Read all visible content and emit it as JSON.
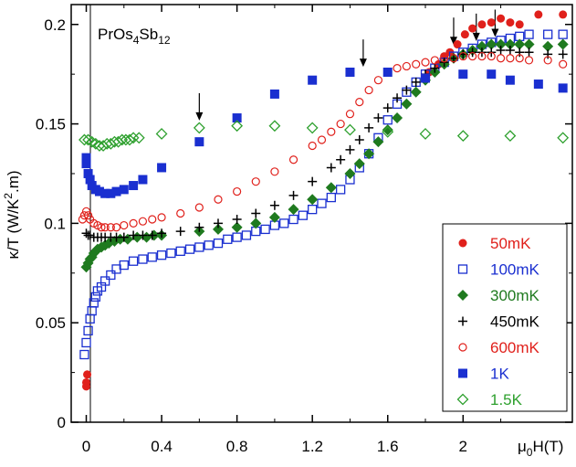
{
  "chart_data": {
    "type": "scatter",
    "title": "",
    "annotation": {
      "text": "PrOs",
      "sub1": "4",
      "mid": "Sb",
      "sub2": "12"
    },
    "xlabel": {
      "mu": "μ",
      "sub": "0",
      "rest": "H(T)"
    },
    "ylabel": {
      "pre": "κ/T (W/K",
      "sup": "2",
      "post": ".m)"
    },
    "xlim": [
      -0.08,
      2.58
    ],
    "ylim": [
      0,
      0.21
    ],
    "xticks": [
      0,
      0.4,
      0.8,
      1.2,
      1.6,
      2
    ],
    "xtick_labels": [
      "0",
      "0.4",
      "0.8",
      "1.2",
      "1.6",
      "2"
    ],
    "yticks": [
      0,
      0.05,
      0.1,
      0.15,
      0.2
    ],
    "ytick_labels": [
      "0",
      "0.05",
      "0.1",
      "0.15",
      "0.2"
    ],
    "legend_position": "bottom-right",
    "series": [
      {
        "name": "50mK",
        "marker": "circle-filled",
        "color": "#e0201b",
        "points": [
          [
            0.0,
            0.018
          ],
          [
            0.0,
            0.02
          ],
          [
            0.005,
            0.024
          ],
          [
            1.82,
            0.176
          ],
          [
            1.87,
            0.18
          ],
          [
            1.9,
            0.184
          ],
          [
            1.93,
            0.186
          ],
          [
            1.97,
            0.19
          ],
          [
            2.01,
            0.195
          ],
          [
            2.05,
            0.198
          ],
          [
            2.1,
            0.2
          ],
          [
            2.15,
            0.201
          ],
          [
            2.2,
            0.203
          ],
          [
            2.25,
            0.201
          ],
          [
            2.3,
            0.2
          ],
          [
            2.4,
            0.205
          ],
          [
            2.53,
            0.205
          ]
        ]
      },
      {
        "name": "100mK",
        "marker": "square-open",
        "color": "#1a2fd0",
        "points": [
          [
            -0.01,
            0.034
          ],
          [
            0.0,
            0.04
          ],
          [
            0.01,
            0.046
          ],
          [
            0.02,
            0.052
          ],
          [
            0.03,
            0.056
          ],
          [
            0.04,
            0.06
          ],
          [
            0.05,
            0.063
          ],
          [
            0.06,
            0.066
          ],
          [
            0.08,
            0.068
          ],
          [
            0.1,
            0.071
          ],
          [
            0.13,
            0.074
          ],
          [
            0.16,
            0.077
          ],
          [
            0.2,
            0.079
          ],
          [
            0.25,
            0.081
          ],
          [
            0.3,
            0.082
          ],
          [
            0.35,
            0.083
          ],
          [
            0.4,
            0.084
          ],
          [
            0.45,
            0.085
          ],
          [
            0.5,
            0.086
          ],
          [
            0.55,
            0.087
          ],
          [
            0.6,
            0.088
          ],
          [
            0.65,
            0.089
          ],
          [
            0.7,
            0.09
          ],
          [
            0.75,
            0.092
          ],
          [
            0.8,
            0.093
          ],
          [
            0.85,
            0.094
          ],
          [
            0.9,
            0.096
          ],
          [
            0.95,
            0.097
          ],
          [
            1.0,
            0.099
          ],
          [
            1.05,
            0.1
          ],
          [
            1.1,
            0.102
          ],
          [
            1.15,
            0.104
          ],
          [
            1.2,
            0.107
          ],
          [
            1.25,
            0.11
          ],
          [
            1.3,
            0.113
          ],
          [
            1.35,
            0.117
          ],
          [
            1.4,
            0.122
          ],
          [
            1.45,
            0.128
          ],
          [
            1.5,
            0.135
          ],
          [
            1.55,
            0.143
          ],
          [
            1.6,
            0.152
          ],
          [
            1.65,
            0.16
          ],
          [
            1.7,
            0.166
          ],
          [
            1.75,
            0.171
          ],
          [
            1.8,
            0.175
          ],
          [
            1.85,
            0.178
          ],
          [
            1.9,
            0.181
          ],
          [
            1.95,
            0.184
          ],
          [
            2.0,
            0.186
          ],
          [
            2.05,
            0.188
          ],
          [
            2.1,
            0.19
          ],
          [
            2.15,
            0.191
          ],
          [
            2.2,
            0.192
          ],
          [
            2.25,
            0.193
          ],
          [
            2.3,
            0.194
          ],
          [
            2.35,
            0.195
          ],
          [
            2.45,
            0.195
          ],
          [
            2.53,
            0.195
          ]
        ]
      },
      {
        "name": "300mK",
        "marker": "diamond-filled",
        "color": "#1f7a1f",
        "points": [
          [
            0.0,
            0.078
          ],
          [
            0.01,
            0.08
          ],
          [
            0.02,
            0.082
          ],
          [
            0.03,
            0.083
          ],
          [
            0.04,
            0.085
          ],
          [
            0.05,
            0.086
          ],
          [
            0.06,
            0.087
          ],
          [
            0.08,
            0.088
          ],
          [
            0.1,
            0.089
          ],
          [
            0.12,
            0.09
          ],
          [
            0.15,
            0.091
          ],
          [
            0.18,
            0.092
          ],
          [
            0.22,
            0.092
          ],
          [
            0.27,
            0.093
          ],
          [
            0.32,
            0.093
          ],
          [
            0.36,
            0.094
          ],
          [
            0.4,
            0.094
          ],
          [
            0.6,
            0.096
          ],
          [
            0.7,
            0.097
          ],
          [
            0.8,
            0.098
          ],
          [
            0.9,
            0.1
          ],
          [
            1.0,
            0.103
          ],
          [
            1.1,
            0.107
          ],
          [
            1.2,
            0.112
          ],
          [
            1.3,
            0.118
          ],
          [
            1.4,
            0.125
          ],
          [
            1.45,
            0.13
          ],
          [
            1.5,
            0.135
          ],
          [
            1.55,
            0.141
          ],
          [
            1.6,
            0.147
          ],
          [
            1.65,
            0.153
          ],
          [
            1.7,
            0.16
          ],
          [
            1.75,
            0.166
          ],
          [
            1.8,
            0.172
          ],
          [
            1.85,
            0.176
          ],
          [
            1.9,
            0.18
          ],
          [
            1.95,
            0.183
          ],
          [
            2.0,
            0.185
          ],
          [
            2.05,
            0.187
          ],
          [
            2.1,
            0.189
          ],
          [
            2.15,
            0.19
          ],
          [
            2.2,
            0.19
          ],
          [
            2.25,
            0.19
          ],
          [
            2.3,
            0.19
          ],
          [
            2.35,
            0.19
          ],
          [
            2.45,
            0.189
          ],
          [
            2.53,
            0.19
          ]
        ]
      },
      {
        "name": "450mK",
        "marker": "plus",
        "color": "#000000",
        "points": [
          [
            0.0,
            0.095
          ],
          [
            0.01,
            0.094
          ],
          [
            0.02,
            0.094
          ],
          [
            0.04,
            0.093
          ],
          [
            0.06,
            0.093
          ],
          [
            0.08,
            0.093
          ],
          [
            0.1,
            0.093
          ],
          [
            0.13,
            0.093
          ],
          [
            0.16,
            0.093
          ],
          [
            0.2,
            0.093
          ],
          [
            0.25,
            0.094
          ],
          [
            0.3,
            0.094
          ],
          [
            0.35,
            0.094
          ],
          [
            0.4,
            0.095
          ],
          [
            0.5,
            0.096
          ],
          [
            0.6,
            0.098
          ],
          [
            0.7,
            0.1
          ],
          [
            0.8,
            0.102
          ],
          [
            0.9,
            0.105
          ],
          [
            1.0,
            0.109
          ],
          [
            1.1,
            0.114
          ],
          [
            1.2,
            0.121
          ],
          [
            1.3,
            0.128
          ],
          [
            1.35,
            0.132
          ],
          [
            1.4,
            0.137
          ],
          [
            1.45,
            0.142
          ],
          [
            1.5,
            0.148
          ],
          [
            1.55,
            0.153
          ],
          [
            1.6,
            0.158
          ],
          [
            1.65,
            0.163
          ],
          [
            1.7,
            0.167
          ],
          [
            1.75,
            0.171
          ],
          [
            1.8,
            0.175
          ],
          [
            1.85,
            0.178
          ],
          [
            1.9,
            0.181
          ],
          [
            1.95,
            0.183
          ],
          [
            2.0,
            0.185
          ],
          [
            2.05,
            0.186
          ],
          [
            2.1,
            0.186
          ],
          [
            2.15,
            0.186
          ],
          [
            2.2,
            0.187
          ],
          [
            2.25,
            0.187
          ],
          [
            2.3,
            0.186
          ],
          [
            2.35,
            0.186
          ],
          [
            2.45,
            0.185
          ],
          [
            2.53,
            0.185
          ]
        ]
      },
      {
        "name": "600mK",
        "marker": "circle-open",
        "color": "#e0201b",
        "points": [
          [
            -0.02,
            0.102
          ],
          [
            -0.01,
            0.104
          ],
          [
            0.0,
            0.106
          ],
          [
            0.01,
            0.104
          ],
          [
            0.02,
            0.102
          ],
          [
            0.04,
            0.1
          ],
          [
            0.06,
            0.099
          ],
          [
            0.08,
            0.098
          ],
          [
            0.1,
            0.098
          ],
          [
            0.13,
            0.098
          ],
          [
            0.16,
            0.098
          ],
          [
            0.2,
            0.099
          ],
          [
            0.25,
            0.1
          ],
          [
            0.3,
            0.101
          ],
          [
            0.35,
            0.102
          ],
          [
            0.4,
            0.103
          ],
          [
            0.5,
            0.105
          ],
          [
            0.6,
            0.108
          ],
          [
            0.7,
            0.112
          ],
          [
            0.8,
            0.116
          ],
          [
            0.9,
            0.121
          ],
          [
            1.0,
            0.126
          ],
          [
            1.1,
            0.132
          ],
          [
            1.2,
            0.139
          ],
          [
            1.25,
            0.142
          ],
          [
            1.3,
            0.146
          ],
          [
            1.35,
            0.15
          ],
          [
            1.4,
            0.155
          ],
          [
            1.45,
            0.161
          ],
          [
            1.5,
            0.167
          ],
          [
            1.55,
            0.172
          ],
          [
            1.6,
            0.176
          ],
          [
            1.65,
            0.178
          ],
          [
            1.7,
            0.179
          ],
          [
            1.75,
            0.18
          ],
          [
            1.8,
            0.181
          ],
          [
            1.85,
            0.182
          ],
          [
            1.9,
            0.183
          ],
          [
            1.95,
            0.183
          ],
          [
            2.0,
            0.184
          ],
          [
            2.05,
            0.184
          ],
          [
            2.1,
            0.184
          ],
          [
            2.15,
            0.184
          ],
          [
            2.2,
            0.183
          ],
          [
            2.25,
            0.183
          ],
          [
            2.3,
            0.183
          ],
          [
            2.35,
            0.182
          ],
          [
            2.45,
            0.182
          ],
          [
            2.53,
            0.18
          ]
        ]
      },
      {
        "name": "1K",
        "marker": "square-filled",
        "color": "#1a2fd0",
        "points": [
          [
            0.0,
            0.133
          ],
          [
            0.0,
            0.13
          ],
          [
            0.01,
            0.125
          ],
          [
            0.02,
            0.122
          ],
          [
            0.03,
            0.119
          ],
          [
            0.05,
            0.117
          ],
          [
            0.07,
            0.116
          ],
          [
            0.1,
            0.115
          ],
          [
            0.13,
            0.115
          ],
          [
            0.16,
            0.116
          ],
          [
            0.2,
            0.117
          ],
          [
            0.25,
            0.119
          ],
          [
            0.3,
            0.122
          ],
          [
            0.4,
            0.128
          ],
          [
            0.6,
            0.141
          ],
          [
            0.8,
            0.153
          ],
          [
            1.0,
            0.165
          ],
          [
            1.2,
            0.172
          ],
          [
            1.4,
            0.176
          ],
          [
            1.6,
            0.176
          ],
          [
            1.8,
            0.173
          ],
          [
            2.0,
            0.175
          ],
          [
            2.15,
            0.175
          ],
          [
            2.25,
            0.172
          ],
          [
            2.4,
            0.17
          ],
          [
            2.53,
            0.168
          ]
        ]
      },
      {
        "name": "1.5K",
        "marker": "diamond-open",
        "color": "#2ea02e",
        "points": [
          [
            -0.01,
            0.142
          ],
          [
            0.01,
            0.142
          ],
          [
            0.03,
            0.141
          ],
          [
            0.05,
            0.14
          ],
          [
            0.07,
            0.139
          ],
          [
            0.09,
            0.139
          ],
          [
            0.11,
            0.14
          ],
          [
            0.13,
            0.14
          ],
          [
            0.15,
            0.141
          ],
          [
            0.17,
            0.141
          ],
          [
            0.19,
            0.142
          ],
          [
            0.21,
            0.142
          ],
          [
            0.23,
            0.142
          ],
          [
            0.25,
            0.143
          ],
          [
            0.28,
            0.143
          ],
          [
            0.4,
            0.145
          ],
          [
            0.6,
            0.148
          ],
          [
            0.8,
            0.149
          ],
          [
            1.0,
            0.149
          ],
          [
            1.2,
            0.148
          ],
          [
            1.4,
            0.147
          ],
          [
            1.6,
            0.146
          ],
          [
            1.8,
            0.145
          ],
          [
            2.0,
            0.144
          ],
          [
            2.25,
            0.144
          ],
          [
            2.53,
            0.143
          ]
        ]
      }
    ],
    "arrows": [
      [
        0.6,
        0.148
      ],
      [
        1.47,
        0.175
      ],
      [
        1.95,
        0.186
      ],
      [
        2.07,
        0.188
      ],
      [
        2.17,
        0.19
      ]
    ]
  }
}
